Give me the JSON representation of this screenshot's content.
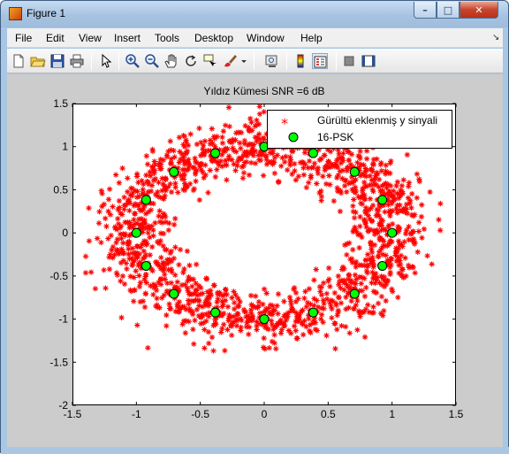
{
  "window": {
    "title": "Figure 1",
    "icon": "matlab-figure-icon",
    "controls": {
      "minimize": "–",
      "maximize": "□",
      "close": "✕"
    }
  },
  "menubar": {
    "items": [
      "File",
      "Edit",
      "View",
      "Insert",
      "Tools",
      "Desktop",
      "Window",
      "Help"
    ],
    "dock_glyph": "↘"
  },
  "toolbar": {
    "buttons": [
      "new-figure-icon",
      "open-file-icon",
      "save-icon",
      "print-icon",
      "select-arrow-icon",
      "zoom-in-icon",
      "zoom-out-icon",
      "pan-hand-icon",
      "rotate-3d-icon",
      "data-cursor-icon",
      "brush-icon",
      "link-plot-icon",
      "colorbar-icon",
      "legend-icon",
      "hide-plot-tools-icon",
      "show-plot-tools-icon"
    ]
  },
  "colors": {
    "noisy_marker": "#ff0000",
    "psk_fill": "#00ff00",
    "axes_background": "#ffffff",
    "figure_background": "#cccccc"
  },
  "chart_data": {
    "type": "scatter",
    "title": "Yıldız Kümesi  SNR =6 dB",
    "xlabel": "",
    "ylabel": "",
    "xlim": [
      -1.5,
      1.5
    ],
    "ylim": [
      -2,
      1.5
    ],
    "x_ticks": [
      "-1.5",
      "-1",
      "-0.5",
      "0",
      "0.5",
      "1",
      "1.5"
    ],
    "y_ticks": [
      "-2",
      "-1.5",
      "-1",
      "-0.5",
      "0",
      "0.5",
      "1",
      "1.5"
    ],
    "legend_position": "top-right",
    "grid": false,
    "series": [
      {
        "name": "Gürültü eklenmiş y sinyali",
        "marker": "*",
        "color": "#ff0000",
        "distribution": "16-PSK unit circle points with additive noise",
        "noise_std": 0.16,
        "point_count": 1600
      },
      {
        "name": "16-PSK",
        "marker": "o",
        "color": "#00ff00",
        "x": [
          1.0,
          0.924,
          0.707,
          0.383,
          0.0,
          -0.383,
          -0.707,
          -0.924,
          -1.0,
          -0.924,
          -0.707,
          -0.383,
          0.0,
          0.383,
          0.707,
          0.924
        ],
        "y": [
          0.0,
          0.383,
          0.707,
          0.924,
          1.0,
          0.924,
          0.707,
          0.383,
          0.0,
          -0.383,
          -0.707,
          -0.924,
          -1.0,
          -0.924,
          -0.707,
          -0.383
        ]
      }
    ]
  }
}
